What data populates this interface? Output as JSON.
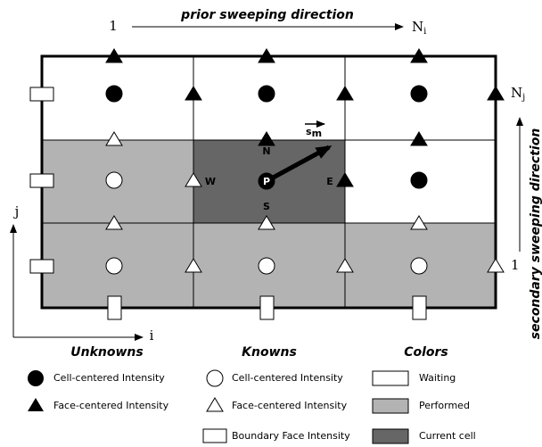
{
  "header": {
    "start_i": "1",
    "prior_direction": "prior sweeping direction",
    "end_i": {
      "base": "N",
      "sub": "i"
    },
    "end_j": {
      "base": "N",
      "sub": "j"
    },
    "start_j": "1",
    "secondary_direction": "secondary sweeping direction"
  },
  "axes": {
    "j": "j",
    "i": "i"
  },
  "cell_labels": {
    "N": "N",
    "S": "S",
    "E": "E",
    "W": "W",
    "P": "P",
    "s": {
      "base": "s",
      "sub": "m"
    }
  },
  "legend": {
    "unknowns": {
      "title": "Unknowns",
      "items": [
        "Cell-centered Intensity",
        "Face-centered Intensity"
      ]
    },
    "knowns": {
      "title": "Knowns",
      "items": [
        "Cell-centered Intensity",
        "Face-centered Intensity",
        "Boundary Face Intensity"
      ]
    },
    "colors": {
      "title": "Colors",
      "items": [
        "Waiting",
        "Performed",
        "Current cell"
      ]
    }
  }
}
